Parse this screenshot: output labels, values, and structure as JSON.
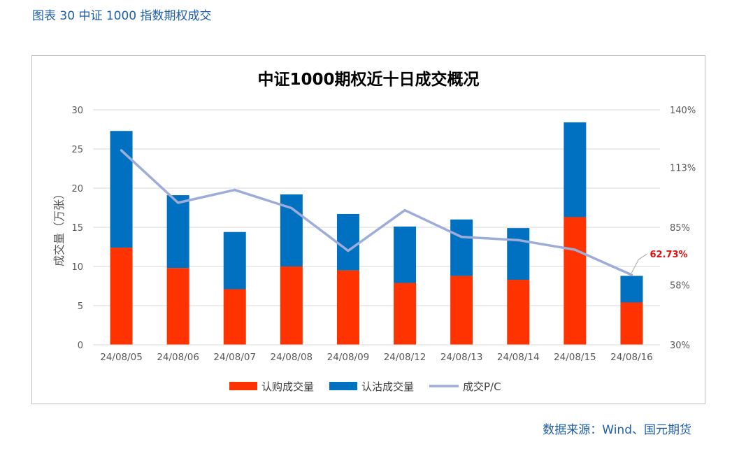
{
  "figure_caption": "图表 30 中证 1000 指数期权成交",
  "source_note": "数据来源：Wind、国元期货",
  "chart_data": {
    "type": "bar",
    "stacked": true,
    "title": "中证1000期权近十日成交概况",
    "ylabel": "成交量（万张）",
    "ylabel_right": "",
    "ylim": [
      0,
      30
    ],
    "yticks": [
      "0",
      "5",
      "10",
      "15",
      "20",
      "25",
      "30"
    ],
    "y2lim": [
      30,
      140
    ],
    "y2ticks": [
      "30%",
      "58%",
      "85%",
      "113%",
      "140%"
    ],
    "grid": true,
    "legend_position": "bottom",
    "categories": [
      "24/08/05",
      "24/08/06",
      "24/08/07",
      "24/08/08",
      "24/08/09",
      "24/08/12",
      "24/08/13",
      "24/08/14",
      "24/08/15",
      "24/08/16"
    ],
    "series": [
      {
        "name": "认购成交量",
        "kind": "bar",
        "color": "#ff3300",
        "values": [
          12.4,
          9.8,
          7.1,
          10.0,
          9.5,
          7.9,
          8.8,
          8.3,
          16.3,
          5.4
        ]
      },
      {
        "name": "认沽成交量",
        "kind": "bar",
        "color": "#0070c0",
        "values": [
          14.9,
          9.3,
          7.3,
          9.2,
          7.2,
          7.2,
          7.2,
          6.6,
          12.1,
          3.4
        ]
      },
      {
        "name": "成交P/C",
        "kind": "line",
        "axis": "right",
        "color": "#9dacd8",
        "values": [
          121.0,
          96.5,
          102.5,
          94.0,
          74.0,
          93.0,
          80.5,
          79.0,
          74.5,
          62.73
        ]
      }
    ],
    "annotations": [
      {
        "category": "24/08/16",
        "series": "成交P/C",
        "text": "62.73%",
        "color": "#e01010"
      }
    ]
  }
}
